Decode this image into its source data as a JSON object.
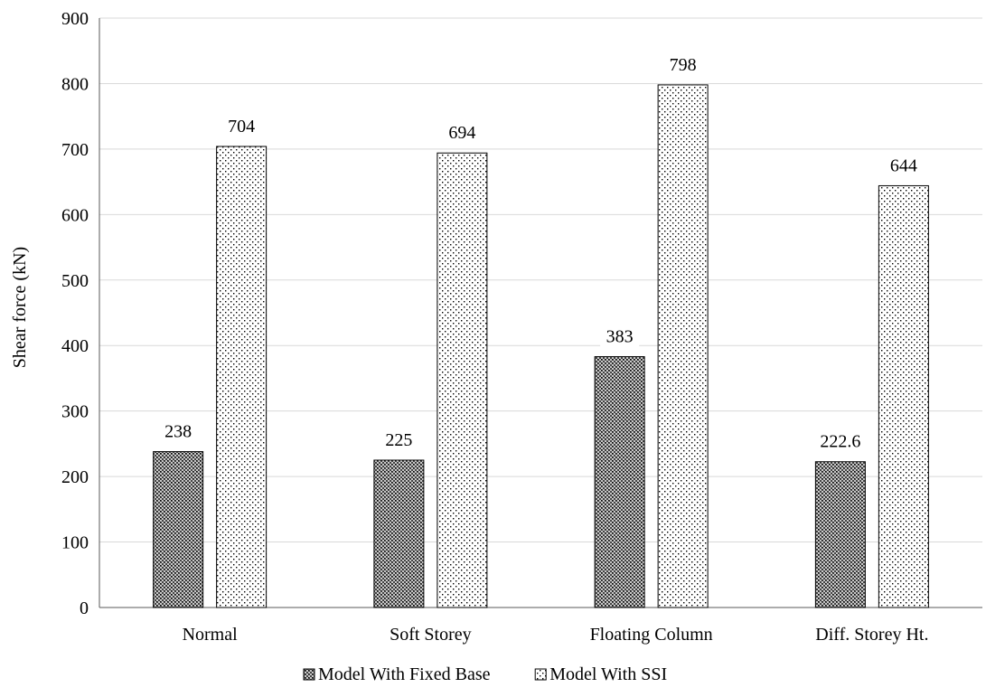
{
  "chart_data": {
    "type": "bar",
    "title": "",
    "xlabel": "",
    "ylabel": "Shear force (kN)",
    "ylim": [
      0,
      900
    ],
    "yticks": [
      0,
      100,
      200,
      300,
      400,
      500,
      600,
      700,
      800,
      900
    ],
    "grid": true,
    "legend_position": "bottom",
    "categories": [
      "Normal",
      "Soft Storey",
      "Floating Column",
      "Diff. Storey Ht."
    ],
    "series": [
      {
        "name": "Model With Fixed Base",
        "values": [
          238,
          225,
          383,
          222.6
        ],
        "labels": [
          "238",
          "225",
          "383",
          "222.6"
        ],
        "pattern": "dense-crosshatch"
      },
      {
        "name": "Model With SSI",
        "values": [
          704,
          694,
          798,
          644
        ],
        "labels": [
          "704",
          "694",
          "798",
          "644"
        ],
        "pattern": "dots"
      }
    ],
    "colors": {
      "bar_outline": "#000000",
      "grid": "#d9d9d9",
      "axis": "#595959"
    }
  }
}
